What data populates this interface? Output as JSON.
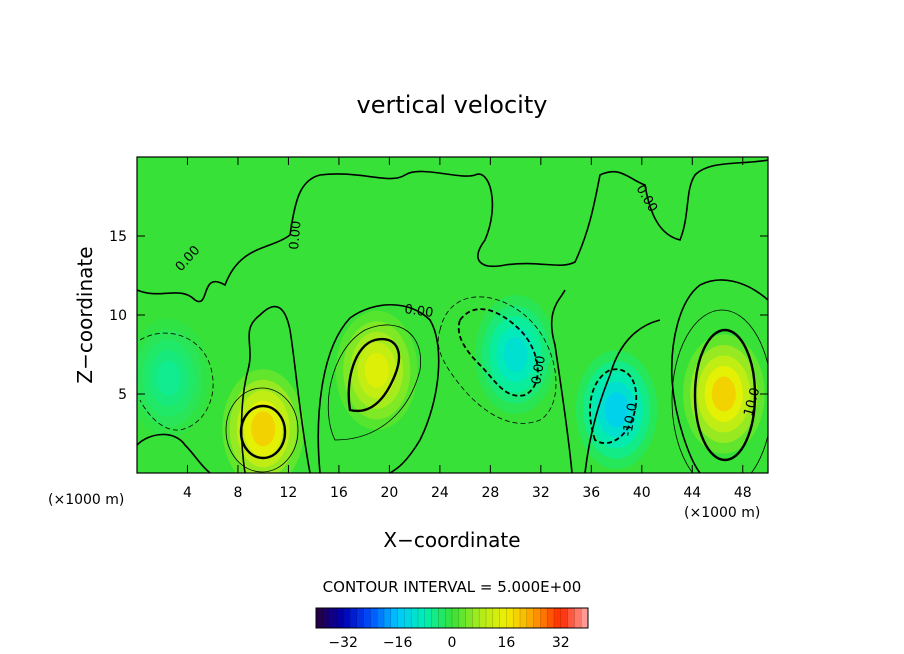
{
  "chart_data": {
    "type": "heatmap",
    "title": "vertical velocity",
    "xlabel": "X−coordinate",
    "ylabel": "Z−coordinate",
    "x_unit_left": "(×1000 m)",
    "x_unit_right": "(×1000 m)",
    "xlim": [
      0,
      50
    ],
    "ylim": [
      0,
      20
    ],
    "x_ticks": [
      4,
      8,
      12,
      16,
      20,
      24,
      28,
      32,
      36,
      40,
      44,
      48
    ],
    "y_ticks": [
      5,
      10,
      15
    ],
    "contour_interval_text": "CONTOUR INTERVAL = 5.000E+00",
    "contour_labels": [
      "0.00",
      "0.00",
      "0.00",
      "0.00",
      "0.00",
      "-10.0",
      "10.0"
    ],
    "colorbar": {
      "range": [
        -40,
        40
      ],
      "ticks": [
        -32,
        -16,
        0,
        16,
        32
      ],
      "tick_labels": [
        "−32",
        "−16",
        "0",
        "16",
        "32"
      ]
    },
    "features": [
      {
        "kind": "updraft",
        "x": 10,
        "z": 2.8,
        "peak": 20
      },
      {
        "kind": "updraft",
        "x": 19,
        "z": 6.5,
        "peak": 15
      },
      {
        "kind": "updraft",
        "x": 46.5,
        "z": 5,
        "peak": 20
      },
      {
        "kind": "downdraft",
        "x": 30,
        "z": 7.5,
        "peak": -12
      },
      {
        "kind": "downdraft",
        "x": 38,
        "z": 4,
        "peak": -15
      },
      {
        "kind": "downdraft",
        "x": 2.5,
        "z": 6,
        "peak": -6
      }
    ]
  }
}
